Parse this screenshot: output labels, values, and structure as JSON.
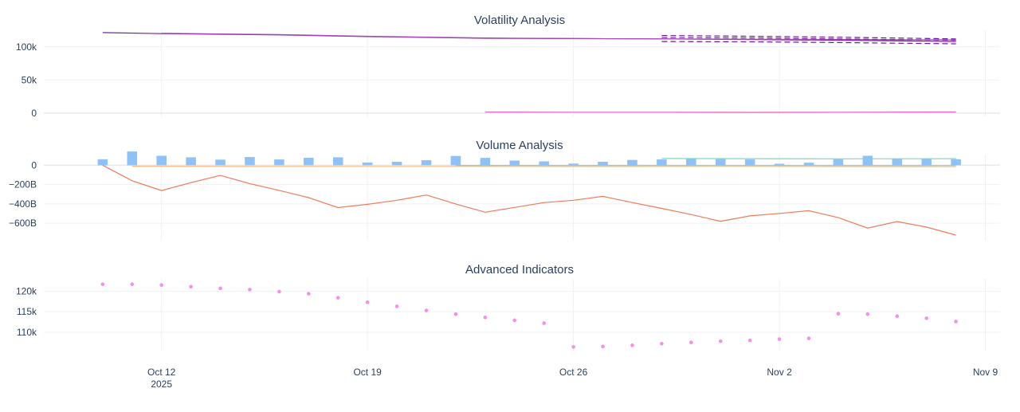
{
  "chart_data": [
    {
      "type": "line",
      "title": "Volatility Analysis",
      "ylim": [
        -5000,
        125000
      ],
      "yticks": [
        0,
        50000,
        100000
      ],
      "ytick_labels": [
        "0",
        "50k",
        "100k"
      ],
      "grid": true,
      "legend": "none",
      "series": [
        {
          "color": "#7b1fa2",
          "style": "solid",
          "x": [
            "2025-10-10",
            "2025-10-12",
            "2025-10-16",
            "2025-10-19",
            "2025-10-23",
            "2025-10-26",
            "2025-10-29",
            "2025-11-01",
            "2025-11-04",
            "2025-11-07",
            "2025-11-08"
          ],
          "values": [
            121500,
            120000,
            118000,
            115500,
            113000,
            112500,
            112000,
            111000,
            110000,
            108500,
            108000
          ]
        },
        {
          "color": "#ab47bc",
          "style": "solid",
          "x": [
            "2025-10-12",
            "2025-10-16",
            "2025-10-19",
            "2025-10-23",
            "2025-10-26",
            "2025-10-29",
            "2025-11-01",
            "2025-11-04",
            "2025-11-08"
          ],
          "values": [
            120500,
            118500,
            116000,
            113500,
            112500,
            112000,
            111500,
            111000,
            110500
          ]
        },
        {
          "color": "#6a1b9a",
          "style": "dashed",
          "x": [
            "2025-10-29",
            "2025-11-01",
            "2025-11-04",
            "2025-11-08"
          ],
          "values": [
            117000,
            116000,
            114500,
            112000
          ]
        },
        {
          "color": "#8e24aa",
          "style": "dashed",
          "x": [
            "2025-10-29",
            "2025-11-01",
            "2025-11-04",
            "2025-11-08"
          ],
          "values": [
            114000,
            113500,
            112000,
            110000
          ]
        },
        {
          "color": "#6a1b9a",
          "style": "dashed",
          "x": [
            "2025-10-29",
            "2025-11-01",
            "2025-11-04",
            "2025-11-08"
          ],
          "values": [
            108000,
            107500,
            106500,
            104500
          ]
        },
        {
          "color": "#e667c8",
          "style": "solid",
          "x": [
            "2025-10-23",
            "2025-10-26",
            "2025-10-29",
            "2025-11-01",
            "2025-11-04",
            "2025-11-08"
          ],
          "values": [
            1500,
            1300,
            1200,
            1000,
            1200,
            1600
          ]
        }
      ]
    },
    {
      "type": "bar",
      "title": "Volume Analysis",
      "ylim": [
        -780,
        110
      ],
      "yticks": [
        0,
        -200,
        -400,
        -600
      ],
      "ytick_labels": [
        "0",
        "−200B",
        "−400B",
        "−600B"
      ],
      "grid": true,
      "legend": "none",
      "bars": {
        "color": "#8ec2f7",
        "x": [
          "2025-10-10",
          "2025-10-11",
          "2025-10-12",
          "2025-10-13",
          "2025-10-14",
          "2025-10-15",
          "2025-10-16",
          "2025-10-17",
          "2025-10-18",
          "2025-10-19",
          "2025-10-20",
          "2025-10-21",
          "2025-10-22",
          "2025-10-23",
          "2025-10-24",
          "2025-10-25",
          "2025-10-26",
          "2025-10-27",
          "2025-10-28",
          "2025-10-29",
          "2025-10-30",
          "2025-10-31",
          "2025-11-01",
          "2025-11-02",
          "2025-11-03",
          "2025-11-04",
          "2025-11-05",
          "2025-11-06",
          "2025-11-07",
          "2025-11-08"
        ],
        "values": [
          62,
          142,
          98,
          82,
          58,
          85,
          60,
          77,
          82,
          28,
          36,
          52,
          96,
          76,
          48,
          40,
          17,
          36,
          55,
          60,
          70,
          64,
          60,
          15,
          26,
          62,
          98,
          66,
          66,
          62
        ]
      },
      "series": [
        {
          "color": "#ef7b5a",
          "style": "solid",
          "x": [
            "2025-10-10",
            "2025-10-11",
            "2025-10-12",
            "2025-10-13",
            "2025-10-14",
            "2025-10-15",
            "2025-10-16",
            "2025-10-17",
            "2025-10-18",
            "2025-10-19",
            "2025-10-20",
            "2025-10-21",
            "2025-10-22",
            "2025-10-23",
            "2025-10-24",
            "2025-10-25",
            "2025-10-26",
            "2025-10-27",
            "2025-10-28",
            "2025-10-29",
            "2025-10-30",
            "2025-10-31",
            "2025-11-01",
            "2025-11-02",
            "2025-11-03",
            "2025-11-04",
            "2025-11-05",
            "2025-11-06",
            "2025-11-07",
            "2025-11-08"
          ],
          "values": [
            0,
            -160,
            -262,
            -180,
            -105,
            -190,
            -260,
            -335,
            -438,
            -404,
            -362,
            -308,
            -400,
            -486,
            -436,
            -386,
            -362,
            -322,
            -386,
            -446,
            -510,
            -580,
            -524,
            -498,
            -470,
            -542,
            -650,
            -582,
            -640,
            -722
          ]
        },
        {
          "color": "#ffb980",
          "style": "solid",
          "x": [
            "2025-10-11",
            "2025-10-15",
            "2025-10-19",
            "2025-10-23",
            "2025-10-27",
            "2025-10-31",
            "2025-11-04",
            "2025-11-08"
          ],
          "values": [
            -10,
            -13,
            -12,
            -13,
            -14,
            -12,
            -14,
            -15
          ]
        },
        {
          "color": "#7ed9bd",
          "style": "solid",
          "x": [
            "2025-10-29",
            "2025-11-01",
            "2025-11-04",
            "2025-11-08"
          ],
          "values": [
            70,
            68,
            66,
            68
          ]
        },
        {
          "color": "#7ed9bd",
          "style": "solid",
          "x": [
            "2025-10-22",
            "2025-10-26",
            "2025-10-29",
            "2025-11-01",
            "2025-11-04",
            "2025-11-08"
          ],
          "values": [
            -2,
            -2,
            -3,
            -3,
            -3,
            -3
          ]
        }
      ]
    },
    {
      "type": "scatter",
      "title": "Advanced Indicators",
      "ylim": [
        105500,
        123000
      ],
      "yticks": [
        110000,
        115000,
        120000
      ],
      "ytick_labels": [
        "110k",
        "115k",
        "120k"
      ],
      "grid": true,
      "legend": "none",
      "series": [
        {
          "color": "#f48fe8",
          "style": "markers",
          "x": [
            "2025-10-10",
            "2025-10-11",
            "2025-10-12",
            "2025-10-13",
            "2025-10-14",
            "2025-10-15",
            "2025-10-16",
            "2025-10-17",
            "2025-10-18",
            "2025-10-19",
            "2025-10-20",
            "2025-10-21",
            "2025-10-22",
            "2025-10-23",
            "2025-10-24",
            "2025-10-25",
            "2025-10-26",
            "2025-10-27",
            "2025-10-28",
            "2025-10-29",
            "2025-10-30",
            "2025-10-31",
            "2025-11-01",
            "2025-11-02",
            "2025-11-03",
            "2025-11-04",
            "2025-11-05",
            "2025-11-06",
            "2025-11-07",
            "2025-11-08"
          ],
          "values": [
            121700,
            121700,
            121500,
            121100,
            120700,
            120400,
            119900,
            119400,
            118400,
            117300,
            116300,
            115300,
            114400,
            113600,
            112900,
            112200,
            106400,
            106500,
            106800,
            107200,
            107500,
            107800,
            108000,
            108300,
            108500,
            114500,
            114400,
            113900,
            113400,
            112600
          ]
        }
      ]
    }
  ],
  "x_axis": {
    "ticks": [
      "2025-10-12",
      "2025-10-19",
      "2025-10-26",
      "2025-11-02",
      "2025-11-09"
    ],
    "tick_labels": [
      "Oct 12",
      "Oct 19",
      "Oct 26",
      "Nov 2",
      "Nov 9"
    ],
    "year_label": "2025"
  }
}
